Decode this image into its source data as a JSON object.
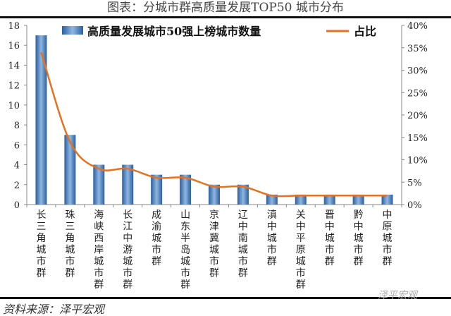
{
  "title": "图表：分城市群高质量发展TOP50 城市分布",
  "source": "资料来源：泽平宏观",
  "watermark": "泽平宏观",
  "chart_data": {
    "type": "bar+line",
    "categories": [
      "长三角城市群",
      "珠三角城市群",
      "海峡西岸城市群",
      "长江中游城市群",
      "成渝城市群",
      "山东半岛城市群",
      "京津冀城市群",
      "辽中南城市群",
      "滇中城市群",
      "关中平原城市群",
      "晋中城市群",
      "黔中城市群",
      "中原城市群"
    ],
    "series": [
      {
        "name": "高质量发展城市50强上榜城市数量",
        "type": "bar",
        "axis": "left",
        "color": "#3f78b8",
        "values": [
          17,
          7,
          4,
          4,
          3,
          3,
          2,
          2,
          1,
          1,
          1,
          1,
          1
        ]
      },
      {
        "name": "占比",
        "type": "line",
        "axis": "right",
        "color": "#e6711f",
        "values": [
          34,
          14,
          8,
          8,
          6,
          6,
          4,
          4,
          2,
          2,
          2,
          2,
          2
        ]
      }
    ],
    "ylim_left": [
      0,
      18
    ],
    "yticks_left": [
      "0",
      "2",
      "4",
      "6",
      "8",
      "10",
      "12",
      "14",
      "16",
      "18"
    ],
    "ylim_right": [
      0,
      40
    ],
    "yticks_right": [
      "0%",
      "5%",
      "10%",
      "15%",
      "20%",
      "25%",
      "30%",
      "35%",
      "40%"
    ],
    "legend": "top",
    "grid": false
  }
}
